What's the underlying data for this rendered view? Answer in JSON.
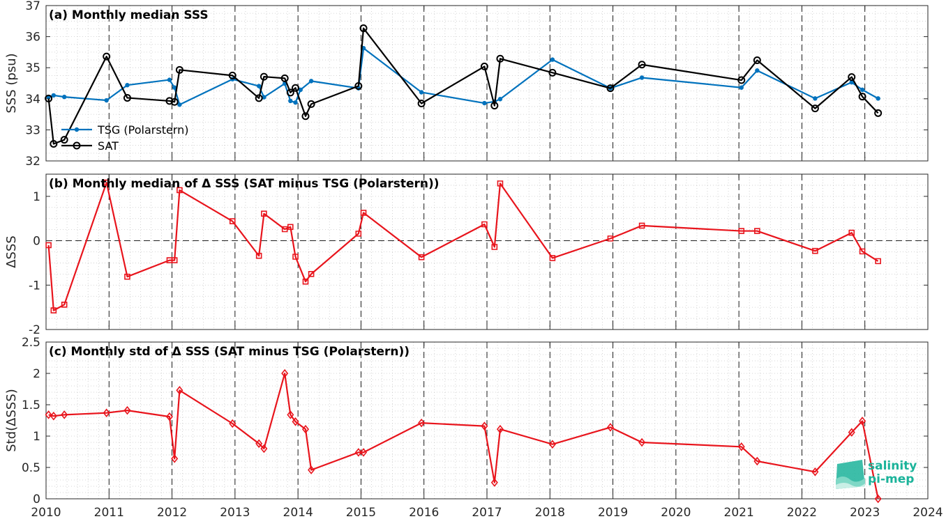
{
  "colors": {
    "tsg": "#0072BD",
    "sat": "#000000",
    "delta": "#e8141c",
    "axis": "#262626",
    "grid_minor": "#c8c8c8",
    "grid_major": "#000000",
    "logo": "#1bb39a"
  },
  "x_ticks": [
    "2010",
    "2011",
    "2012",
    "2013",
    "2014",
    "2015",
    "2016",
    "2017",
    "2018",
    "2019",
    "2020",
    "2021",
    "2022",
    "2023",
    "2024"
  ],
  "logo": {
    "line1": "salinity",
    "line2": "pi-mep"
  },
  "chart_data": [
    {
      "type": "line",
      "title": "(a) Monthly median SSS",
      "ylabel": "SSS (psu)",
      "xlim": [
        2010,
        2024
      ],
      "ylim": [
        32,
        37
      ],
      "yticks": [
        "32",
        "33",
        "34",
        "35",
        "36",
        "37"
      ],
      "legend": "left",
      "series": [
        {
          "name": "TSG (Polarstern)",
          "marker": "dot",
          "x": [
            2010.04,
            2010.12,
            2010.29,
            2010.96,
            2011.29,
            2011.96,
            2012.04,
            2012.12,
            2012.96,
            2013.38,
            2013.46,
            2013.79,
            2013.88,
            2013.96,
            2014.04,
            2014.21,
            2014.96,
            2015.04,
            2015.96,
            2016.96,
            2017.12,
            2017.21,
            2018.04,
            2018.96,
            2019.46,
            2021.04,
            2021.29,
            2022.21,
            2022.79,
            2022.96,
            2023.21
          ],
          "y": [
            34.06,
            34.11,
            34.06,
            33.95,
            34.44,
            34.61,
            34.36,
            33.81,
            34.63,
            34.41,
            34.05,
            34.49,
            33.93,
            33.88,
            34.29,
            34.57,
            34.34,
            35.63,
            34.21,
            33.86,
            33.91,
            33.99,
            35.26,
            34.34,
            34.68,
            34.36,
            34.91,
            34.01,
            34.53,
            34.29,
            34.01
          ]
        },
        {
          "name": "SAT",
          "marker": "circle",
          "x": [
            2010.04,
            2010.12,
            2010.29,
            2010.96,
            2011.29,
            2011.96,
            2012.04,
            2012.12,
            2012.96,
            2013.38,
            2013.46,
            2013.79,
            2013.88,
            2013.96,
            2014.12,
            2014.21,
            2014.96,
            2015.04,
            2015.96,
            2016.96,
            2017.12,
            2017.21,
            2018.04,
            2018.96,
            2019.46,
            2021.04,
            2021.29,
            2022.21,
            2022.79,
            2022.96,
            2023.21
          ],
          "y": [
            34.01,
            32.55,
            32.68,
            35.36,
            34.03,
            33.93,
            33.9,
            34.93,
            34.75,
            34.02,
            34.71,
            34.66,
            34.2,
            34.35,
            33.44,
            33.83,
            34.41,
            36.27,
            33.85,
            35.04,
            33.78,
            35.29,
            34.84,
            34.34,
            35.1,
            34.6,
            35.24,
            33.69,
            34.7,
            34.07,
            33.54
          ]
        }
      ]
    },
    {
      "type": "line",
      "title": "(b) Monthly median of Δ SSS (SAT minus TSG (Polarstern))",
      "ylabel": "ΔSSS",
      "xlim": [
        2010,
        2024
      ],
      "ylim": [
        -2,
        1.5
      ],
      "yticks": [
        "-2",
        "-1",
        "0",
        "1"
      ],
      "zero_line": true,
      "series": [
        {
          "marker": "square",
          "x": [
            2010.04,
            2010.12,
            2010.29,
            2010.96,
            2011.29,
            2011.96,
            2012.04,
            2012.12,
            2012.96,
            2013.38,
            2013.46,
            2013.79,
            2013.88,
            2013.96,
            2014.12,
            2014.21,
            2014.96,
            2015.04,
            2015.96,
            2016.96,
            2017.12,
            2017.21,
            2018.04,
            2018.96,
            2019.46,
            2021.04,
            2021.29,
            2022.21,
            2022.79,
            2022.96,
            2023.21
          ],
          "y": [
            -0.1,
            -1.57,
            -1.44,
            1.31,
            -0.81,
            -0.44,
            -0.44,
            1.14,
            0.44,
            -0.34,
            0.61,
            0.26,
            0.31,
            -0.36,
            -0.92,
            -0.75,
            0.16,
            0.63,
            -0.37,
            0.37,
            -0.14,
            1.29,
            -0.39,
            0.05,
            0.34,
            0.22,
            0.22,
            -0.23,
            0.18,
            -0.24,
            -0.46
          ]
        }
      ]
    },
    {
      "type": "line",
      "title": "(c) Monthly std of Δ SSS (SAT minus TSG (Polarstern))",
      "ylabel": "Std(ΔSSS)",
      "xlim": [
        2010,
        2024
      ],
      "ylim": [
        0,
        2.5
      ],
      "yticks": [
        "0",
        "0.5",
        "1",
        "1.5",
        "2",
        "2.5"
      ],
      "series": [
        {
          "marker": "diamond",
          "x": [
            2010.04,
            2010.12,
            2010.29,
            2010.96,
            2011.29,
            2011.96,
            2012.04,
            2012.12,
            2012.96,
            2013.38,
            2013.46,
            2013.79,
            2013.88,
            2013.96,
            2014.12,
            2014.21,
            2014.96,
            2015.04,
            2015.96,
            2016.96,
            2017.12,
            2017.21,
            2018.04,
            2018.96,
            2019.46,
            2021.04,
            2021.29,
            2022.21,
            2022.79,
            2022.96,
            2023.21
          ],
          "y": [
            1.34,
            1.32,
            1.34,
            1.37,
            1.41,
            1.31,
            0.64,
            1.73,
            1.2,
            0.88,
            0.8,
            2.0,
            1.34,
            1.23,
            1.11,
            0.46,
            0.74,
            0.74,
            1.21,
            1.16,
            0.26,
            1.11,
            0.87,
            1.14,
            0.9,
            0.83,
            0.6,
            0.43,
            1.06,
            1.24,
            0.0
          ]
        }
      ]
    }
  ]
}
